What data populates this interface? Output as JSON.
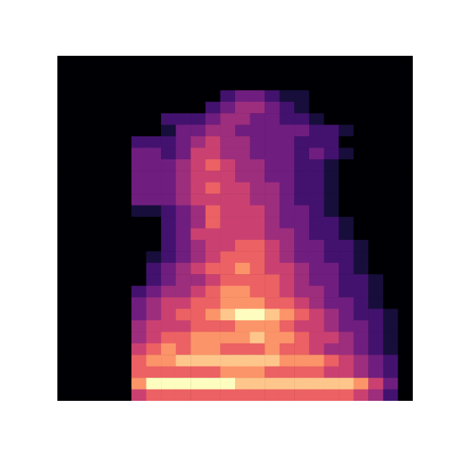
{
  "chart_data": {
    "type": "heatmap",
    "xlim": [
      0,
      24
    ],
    "ylim": [
      0,
      30
    ],
    "zlim": [
      0,
      9
    ],
    "tick_labels": false,
    "cells": [
      [
        0,
        0,
        0,
        0,
        0,
        0,
        0,
        0,
        0,
        0,
        0,
        0,
        0,
        0,
        0,
        0,
        0,
        0,
        0,
        0,
        0,
        0,
        0,
        0
      ],
      [
        0,
        0,
        0,
        0,
        0,
        0,
        0,
        0,
        0,
        0,
        0,
        0,
        0,
        0,
        0,
        0,
        0,
        0,
        0,
        0,
        0,
        0,
        0,
        0
      ],
      [
        0,
        0,
        0,
        0,
        0,
        0,
        0,
        0,
        0,
        0,
        0,
        0,
        0,
        0,
        0,
        0,
        0,
        0,
        0,
        0,
        0,
        0,
        0,
        0
      ],
      [
        0,
        0,
        0,
        0,
        0,
        0,
        0,
        0,
        0,
        0,
        0,
        2,
        3,
        3,
        2,
        1,
        1,
        0,
        0,
        0,
        0,
        0,
        0,
        0
      ],
      [
        0,
        0,
        0,
        0,
        0,
        0,
        0,
        0,
        0,
        0,
        2,
        3,
        4,
        4,
        3,
        2,
        1,
        0,
        0,
        0,
        0,
        0,
        0,
        0
      ],
      [
        0,
        0,
        0,
        0,
        0,
        0,
        0,
        2,
        2,
        2,
        3,
        4,
        4,
        3,
        3,
        2,
        2,
        1,
        0,
        0,
        0,
        0,
        0,
        0
      ],
      [
        0,
        0,
        0,
        0,
        0,
        0,
        0,
        1,
        3,
        3,
        4,
        4,
        3,
        3,
        3,
        3,
        3,
        2,
        2,
        1,
        0,
        0,
        0,
        0
      ],
      [
        0,
        0,
        0,
        0,
        0,
        2,
        2,
        2,
        3,
        4,
        5,
        4,
        4,
        3,
        3,
        3,
        2,
        2,
        2,
        0,
        0,
        0,
        0,
        0
      ],
      [
        0,
        0,
        0,
        0,
        0,
        3,
        3,
        2,
        3,
        5,
        5,
        4,
        4,
        3,
        3,
        3,
        2,
        3,
        2,
        1,
        0,
        0,
        0,
        0
      ],
      [
        0,
        0,
        0,
        0,
        0,
        3,
        3,
        3,
        4,
        5,
        6,
        5,
        4,
        4,
        3,
        3,
        2,
        2,
        1,
        0,
        0,
        0,
        0,
        0
      ],
      [
        0,
        0,
        0,
        0,
        0,
        3,
        3,
        3,
        4,
        5,
        5,
        5,
        4,
        4,
        3,
        3,
        2,
        2,
        1,
        0,
        0,
        0,
        0,
        0
      ],
      [
        0,
        0,
        0,
        0,
        0,
        3,
        3,
        3,
        4,
        5,
        6,
        5,
        5,
        4,
        4,
        3,
        2,
        2,
        1,
        0,
        0,
        0,
        0,
        0
      ],
      [
        0,
        0,
        0,
        0,
        0,
        3,
        3,
        3,
        4,
        5,
        5,
        5,
        5,
        4,
        4,
        3,
        2,
        2,
        1,
        0,
        0,
        0,
        0,
        0
      ],
      [
        0,
        0,
        0,
        0,
        0,
        1,
        1,
        2,
        3,
        4,
        6,
        5,
        5,
        5,
        4,
        3,
        3,
        2,
        1,
        0,
        0,
        0,
        0,
        0
      ],
      [
        0,
        0,
        0,
        0,
        0,
        0,
        0,
        2,
        3,
        4,
        6,
        5,
        5,
        5,
        4,
        3,
        3,
        2,
        2,
        1,
        0,
        0,
        0,
        0
      ],
      [
        0,
        0,
        0,
        0,
        0,
        0,
        0,
        2,
        3,
        5,
        5,
        5,
        5,
        5,
        4,
        4,
        3,
        2,
        2,
        1,
        0,
        0,
        0,
        0
      ],
      [
        0,
        0,
        0,
        0,
        0,
        0,
        0,
        2,
        3,
        4,
        5,
        5,
        6,
        6,
        5,
        4,
        3,
        3,
        2,
        2,
        1,
        0,
        0,
        0
      ],
      [
        0,
        0,
        0,
        0,
        0,
        0,
        1,
        2,
        3,
        4,
        5,
        6,
        6,
        6,
        5,
        4,
        3,
        3,
        2,
        2,
        1,
        0,
        0,
        0
      ],
      [
        0,
        0,
        0,
        0,
        0,
        0,
        2,
        3,
        4,
        5,
        6,
        6,
        7,
        6,
        5,
        5,
        4,
        3,
        3,
        2,
        1,
        0,
        0,
        0
      ],
      [
        0,
        0,
        0,
        0,
        0,
        0,
        2,
        3,
        4,
        4,
        5,
        6,
        6,
        6,
        6,
        5,
        4,
        3,
        3,
        2,
        2,
        1,
        0,
        0
      ],
      [
        0,
        0,
        0,
        0,
        0,
        2,
        3,
        4,
        4,
        5,
        6,
        7,
        7,
        6,
        6,
        5,
        4,
        4,
        3,
        2,
        2,
        1,
        0,
        0
      ],
      [
        0,
        0,
        0,
        0,
        0,
        3,
        4,
        5,
        5,
        6,
        6,
        7,
        7,
        7,
        6,
        6,
        5,
        4,
        3,
        3,
        2,
        1,
        0,
        0
      ],
      [
        0,
        0,
        0,
        0,
        0,
        3,
        4,
        5,
        6,
        6,
        7,
        8,
        9,
        9,
        8,
        7,
        6,
        5,
        4,
        3,
        2,
        2,
        1,
        0
      ],
      [
        0,
        0,
        0,
        0,
        0,
        4,
        5,
        5,
        5,
        6,
        6,
        6,
        7,
        7,
        7,
        6,
        5,
        5,
        4,
        3,
        3,
        2,
        1,
        0
      ],
      [
        0,
        0,
        0,
        0,
        0,
        4,
        5,
        6,
        6,
        7,
        7,
        7,
        7,
        8,
        7,
        7,
        6,
        5,
        5,
        4,
        3,
        2,
        1,
        0
      ],
      [
        0,
        0,
        0,
        0,
        0,
        5,
        6,
        7,
        6,
        7,
        7,
        6,
        6,
        6,
        7,
        6,
        6,
        5,
        4,
        4,
        3,
        2,
        1,
        0
      ],
      [
        0,
        0,
        0,
        0,
        0,
        6,
        7,
        7,
        8,
        8,
        8,
        8,
        8,
        8,
        8,
        7,
        7,
        7,
        6,
        5,
        4,
        3,
        2,
        0
      ],
      [
        0,
        0,
        0,
        0,
        0,
        6,
        6,
        6,
        6,
        6,
        6,
        7,
        7,
        7,
        6,
        6,
        6,
        6,
        5,
        5,
        4,
        3,
        2,
        0
      ],
      [
        0,
        0,
        0,
        0,
        0,
        7,
        9,
        9,
        9,
        9,
        9,
        9,
        8,
        8,
        8,
        8,
        8,
        8,
        8,
        8,
        7,
        5,
        3,
        0
      ],
      [
        0,
        0,
        0,
        0,
        0,
        5,
        6,
        6,
        6,
        6,
        6,
        6,
        6,
        6,
        6,
        6,
        6,
        6,
        6,
        6,
        5,
        4,
        2,
        0
      ]
    ]
  }
}
